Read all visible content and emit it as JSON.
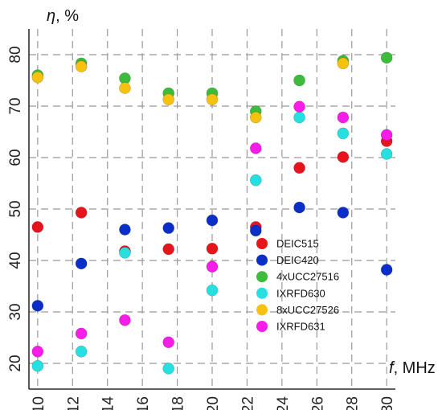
{
  "chart_data": {
    "type": "scatter",
    "title": "",
    "xlabel": {
      "symbol": "f",
      "unit": ", MHz"
    },
    "ylabel": {
      "symbol": "η",
      "unit": ", %"
    },
    "xlim": [
      9.5,
      30.5
    ],
    "ylim": [
      15,
      85
    ],
    "xticks": [
      "10",
      "12",
      "14",
      "16",
      "18",
      "20",
      "22",
      "24",
      "26",
      "28",
      "30"
    ],
    "yticks": [
      "20",
      "30",
      "40",
      "50",
      "60",
      "70",
      "80"
    ],
    "grid": true,
    "legend_position": "bottom-right",
    "x": [
      10,
      12.5,
      15,
      17.5,
      20,
      22.5,
      25,
      27.5,
      30
    ],
    "series": [
      {
        "name": "DEIC515",
        "color": "#e8141c",
        "values": [
          46.5,
          49.3,
          41.8,
          42.2,
          42.3,
          46.5,
          58.0,
          60.1,
          63.2
        ]
      },
      {
        "name": "DEIC420",
        "color": "#0a2fc9",
        "values": [
          31.2,
          39.4,
          46.0,
          46.3,
          47.8,
          45.8,
          50.3,
          49.3,
          38.2
        ]
      },
      {
        "name": "4xUCC27516",
        "color": "#3dbb3a",
        "values": [
          76.0,
          78.3,
          75.4,
          72.5,
          72.5,
          69.0,
          75.0,
          78.8,
          79.4
        ]
      },
      {
        "name": "IXRFD630",
        "color": "#26dfe0",
        "values": [
          19.5,
          22.3,
          41.5,
          19.0,
          34.2,
          55.6,
          67.8,
          64.7,
          60.7
        ]
      },
      {
        "name": "8xUCC27526",
        "color": "#f6c20f",
        "values": [
          75.6,
          77.7,
          73.5,
          71.3,
          71.3,
          67.8,
          null,
          78.3,
          null
        ]
      },
      {
        "name": "IXRFD631",
        "color": "#f71ce8",
        "values": [
          22.3,
          25.8,
          28.4,
          24.1,
          38.8,
          61.8,
          69.9,
          67.8,
          64.4
        ]
      }
    ]
  }
}
